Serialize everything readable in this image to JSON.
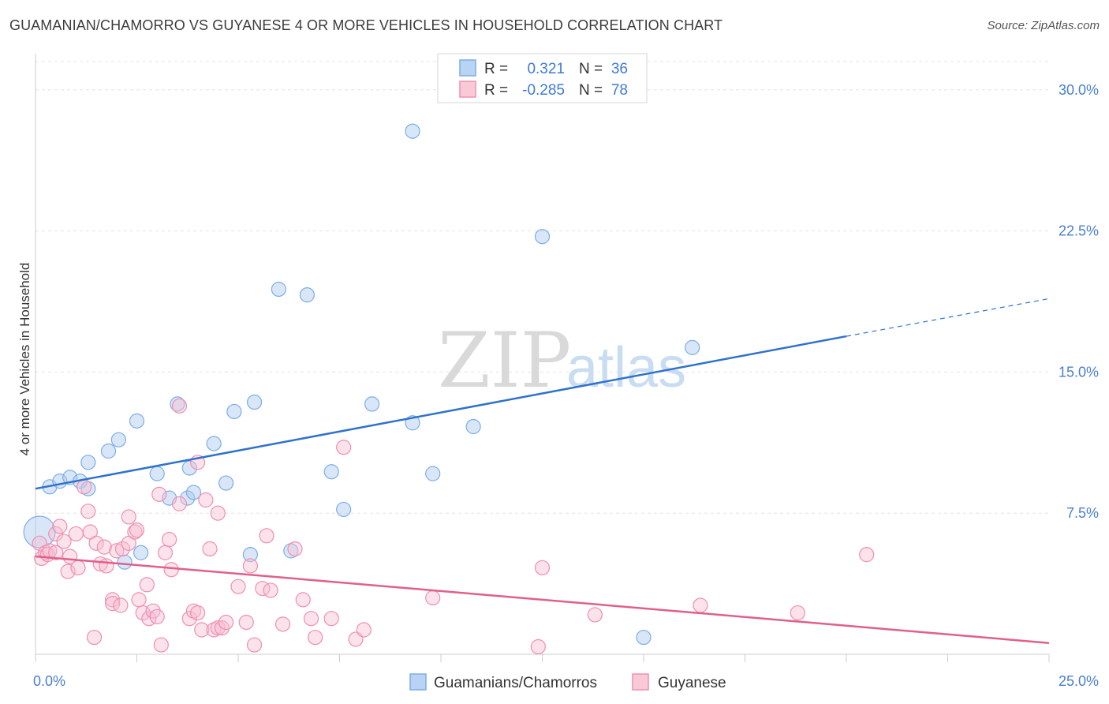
{
  "title": "GUAMANIAN/CHAMORRO VS GUYANESE 4 OR MORE VEHICLES IN HOUSEHOLD CORRELATION CHART",
  "source": "Source: ZipAtlas.com",
  "watermark": {
    "zip": "ZIP",
    "atlas": "atlas"
  },
  "colors": {
    "blue": "#7aaee8",
    "blue_line": "#2f72cc",
    "pink": "#f08fb0",
    "pink_line": "#e0608a",
    "axis_text": "#4a7fcf"
  },
  "stats_legend": {
    "r_label": "R =",
    "n_label": "N =",
    "rows": [
      {
        "r": "0.321",
        "n": "36"
      },
      {
        "r": "-0.285",
        "n": "78"
      }
    ]
  },
  "chart_data": {
    "type": "scatter",
    "title": "GUAMANIAN/CHAMORRO VS GUYANESE 4 OR MORE VEHICLES IN HOUSEHOLD CORRELATION CHART",
    "xlabel": "",
    "ylabel": "4 or more Vehicles in Household",
    "xlim": [
      0,
      25
    ],
    "ylim": [
      0,
      31.5
    ],
    "x_tick_labels": [
      "0.0%",
      "25.0%"
    ],
    "y_ticks": [
      7.5,
      15.0,
      22.5,
      30.0
    ],
    "y_tick_labels": [
      "7.5%",
      "15.0%",
      "22.5%",
      "30.0%"
    ],
    "grid": true,
    "legend_position": "bottom",
    "series": [
      {
        "name": "Guamanians/Chamorros",
        "color": "#7aaee8",
        "trend": {
          "x0": 0,
          "y0": 8.8,
          "x1": 20,
          "y1": 16.9,
          "dash_to_x": 25,
          "dash_to_y": 18.9
        },
        "points": [
          [
            0.1,
            6.5
          ],
          [
            0.35,
            8.9
          ],
          [
            0.6,
            9.2
          ],
          [
            0.85,
            9.4
          ],
          [
            1.1,
            9.2
          ],
          [
            1.3,
            8.8
          ],
          [
            1.3,
            10.2
          ],
          [
            1.8,
            10.8
          ],
          [
            2.05,
            11.4
          ],
          [
            2.2,
            4.9
          ],
          [
            2.5,
            12.4
          ],
          [
            2.6,
            5.4
          ],
          [
            3.0,
            9.6
          ],
          [
            3.3,
            8.3
          ],
          [
            3.5,
            13.3
          ],
          [
            3.8,
            9.9
          ],
          [
            3.75,
            8.3
          ],
          [
            3.9,
            8.6
          ],
          [
            4.4,
            11.2
          ],
          [
            4.7,
            9.1
          ],
          [
            4.9,
            12.9
          ],
          [
            5.3,
            5.3
          ],
          [
            5.4,
            13.4
          ],
          [
            6.0,
            19.4
          ],
          [
            6.3,
            5.5
          ],
          [
            6.7,
            19.1
          ],
          [
            7.3,
            9.7
          ],
          [
            7.6,
            7.7
          ],
          [
            8.3,
            13.3
          ],
          [
            9.3,
            12.3
          ],
          [
            9.3,
            27.8
          ],
          [
            9.8,
            9.6
          ],
          [
            10.8,
            12.1
          ],
          [
            12.5,
            22.2
          ],
          [
            15.0,
            0.9
          ],
          [
            16.2,
            16.3
          ]
        ]
      },
      {
        "name": "Guyanese",
        "color": "#f08fb0",
        "trend": {
          "x0": 0,
          "y0": 5.2,
          "x1": 25,
          "y1": 0.6
        },
        "points": [
          [
            0.1,
            5.9
          ],
          [
            0.15,
            5.1
          ],
          [
            0.25,
            5.4
          ],
          [
            0.3,
            5.3
          ],
          [
            0.35,
            5.5
          ],
          [
            0.5,
            5.4
          ],
          [
            0.5,
            6.4
          ],
          [
            0.6,
            6.8
          ],
          [
            0.7,
            6.0
          ],
          [
            0.8,
            4.4
          ],
          [
            0.85,
            5.2
          ],
          [
            1.0,
            6.4
          ],
          [
            1.05,
            4.6
          ],
          [
            1.2,
            8.9
          ],
          [
            1.3,
            7.6
          ],
          [
            1.35,
            6.5
          ],
          [
            1.45,
            0.9
          ],
          [
            1.5,
            5.9
          ],
          [
            1.6,
            4.8
          ],
          [
            1.7,
            5.7
          ],
          [
            1.75,
            4.7
          ],
          [
            1.9,
            2.9
          ],
          [
            1.9,
            2.7
          ],
          [
            2.0,
            5.5
          ],
          [
            2.1,
            2.6
          ],
          [
            2.15,
            5.6
          ],
          [
            2.3,
            5.9
          ],
          [
            2.3,
            7.3
          ],
          [
            2.45,
            6.5
          ],
          [
            2.5,
            6.6
          ],
          [
            2.55,
            2.9
          ],
          [
            2.65,
            2.2
          ],
          [
            2.75,
            3.7
          ],
          [
            2.8,
            1.9
          ],
          [
            2.9,
            2.3
          ],
          [
            3.0,
            2.0
          ],
          [
            3.05,
            8.5
          ],
          [
            3.1,
            0.5
          ],
          [
            3.2,
            5.4
          ],
          [
            3.3,
            6.1
          ],
          [
            3.35,
            4.5
          ],
          [
            3.55,
            8.0
          ],
          [
            3.55,
            13.2
          ],
          [
            3.8,
            1.9
          ],
          [
            3.9,
            2.3
          ],
          [
            4.0,
            2.2
          ],
          [
            4.0,
            10.2
          ],
          [
            4.1,
            1.3
          ],
          [
            4.2,
            8.2
          ],
          [
            4.3,
            5.6
          ],
          [
            4.4,
            1.3
          ],
          [
            4.5,
            1.4
          ],
          [
            4.5,
            7.5
          ],
          [
            4.6,
            1.4
          ],
          [
            4.7,
            1.7
          ],
          [
            5.0,
            3.6
          ],
          [
            5.2,
            1.7
          ],
          [
            5.3,
            4.7
          ],
          [
            5.4,
            0.5
          ],
          [
            5.6,
            3.5
          ],
          [
            5.7,
            6.3
          ],
          [
            5.8,
            3.4
          ],
          [
            6.1,
            1.6
          ],
          [
            6.4,
            5.6
          ],
          [
            6.6,
            2.9
          ],
          [
            6.8,
            1.9
          ],
          [
            6.9,
            0.9
          ],
          [
            7.3,
            1.9
          ],
          [
            7.6,
            11.0
          ],
          [
            7.9,
            0.8
          ],
          [
            8.1,
            1.3
          ],
          [
            9.8,
            3.0
          ],
          [
            12.4,
            0.4
          ],
          [
            12.5,
            4.6
          ],
          [
            13.8,
            2.1
          ],
          [
            16.4,
            2.6
          ],
          [
            18.8,
            2.2
          ],
          [
            20.5,
            5.3
          ]
        ]
      }
    ]
  }
}
